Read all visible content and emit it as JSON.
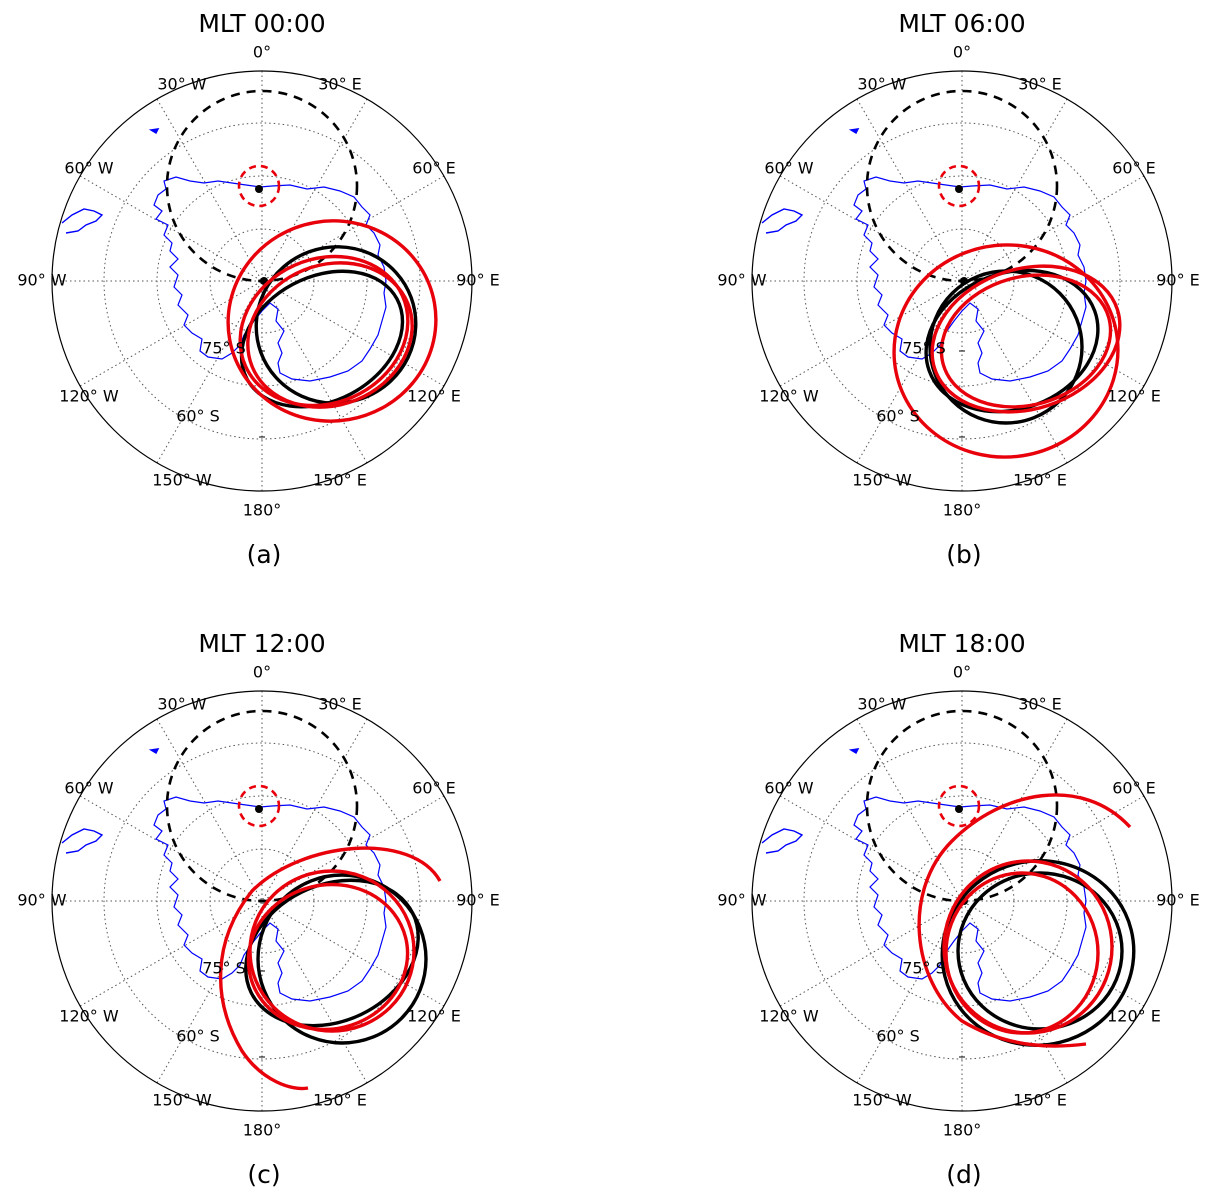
{
  "chart_data": [
    {
      "type": "polar-map",
      "title": "MLT 00:00",
      "caption": "(a)",
      "longitude_labels": [
        "0°",
        "30° E",
        "60° E",
        "90° E",
        "120° E",
        "150° E",
        "180°",
        "150° W",
        "120° W",
        "90° W",
        "60° W",
        "30° W"
      ],
      "latitude_labels": [
        "75° S",
        "60° S"
      ]
    },
    {
      "type": "polar-map",
      "title": "MLT 06:00",
      "caption": "(b)",
      "longitude_labels": [
        "0°",
        "30° E",
        "60° E",
        "90° E",
        "120° E",
        "150° E",
        "180°",
        "150° W",
        "120° W",
        "90° W",
        "60° W",
        "30° W"
      ],
      "latitude_labels": [
        "75° S",
        "60° S"
      ]
    },
    {
      "type": "polar-map",
      "title": "MLT 12:00",
      "caption": "(c)",
      "longitude_labels": [
        "0°",
        "30° E",
        "60° E",
        "90° E",
        "120° E",
        "150° E",
        "180°",
        "150° W",
        "120° W",
        "90° W",
        "60° W",
        "30° W"
      ],
      "latitude_labels": [
        "75° S",
        "60° S"
      ]
    },
    {
      "type": "polar-map",
      "title": "MLT 18:00",
      "caption": "(d)",
      "longitude_labels": [
        "0°",
        "30° E",
        "60° E",
        "90° E",
        "120° E",
        "150° E",
        "180°",
        "150° W",
        "120° W",
        "90° W",
        "60° W",
        "30° W"
      ],
      "latitude_labels": [
        "75° S",
        "60° S"
      ]
    }
  ],
  "colors": {
    "coastline": "#0000ff",
    "black_oval": "#000000",
    "red_oval": "#e8000b",
    "grid": "#555555"
  }
}
